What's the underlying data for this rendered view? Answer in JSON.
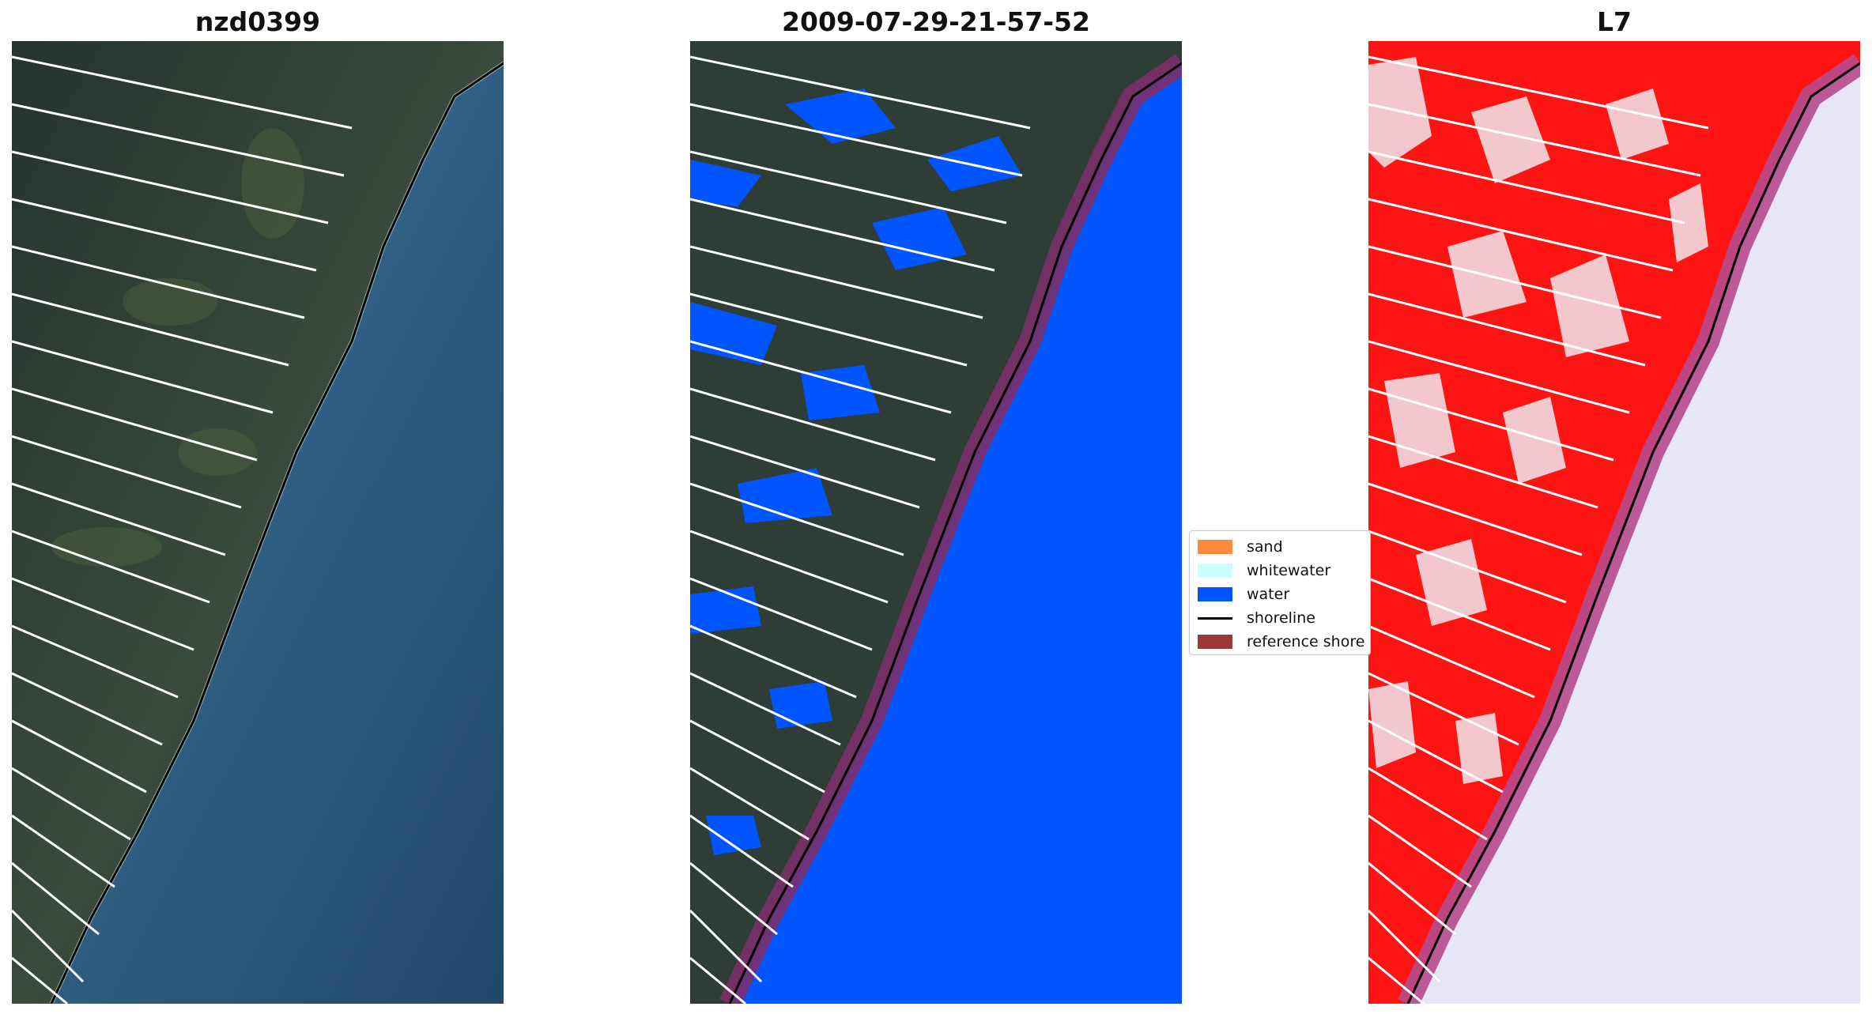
{
  "panels": [
    {
      "title": "nzd0399",
      "name": "rgb-panel"
    },
    {
      "title": "2009-07-29-21-57-52",
      "name": "classified-panel"
    },
    {
      "title": "L7",
      "name": "index-panel"
    }
  ],
  "legend": {
    "items": [
      {
        "label": "sand",
        "color": "#ff8c3c",
        "kind": "patch"
      },
      {
        "label": "whitewater",
        "color": "#ccffff",
        "kind": "patch"
      },
      {
        "label": "water",
        "color": "#0055ff",
        "kind": "patch"
      },
      {
        "label": "shoreline",
        "color": "#000000",
        "kind": "line"
      },
      {
        "label": "reference shore",
        "color": "#9b3838",
        "kind": "patch"
      }
    ]
  },
  "colors": {
    "land_dark": "#2a3a34",
    "sea": "#2f5f82",
    "water_class": "#0055ff",
    "buffer": "#7a2f6a",
    "index_land": "#ff1414",
    "index_water": "#e6e6f8"
  }
}
